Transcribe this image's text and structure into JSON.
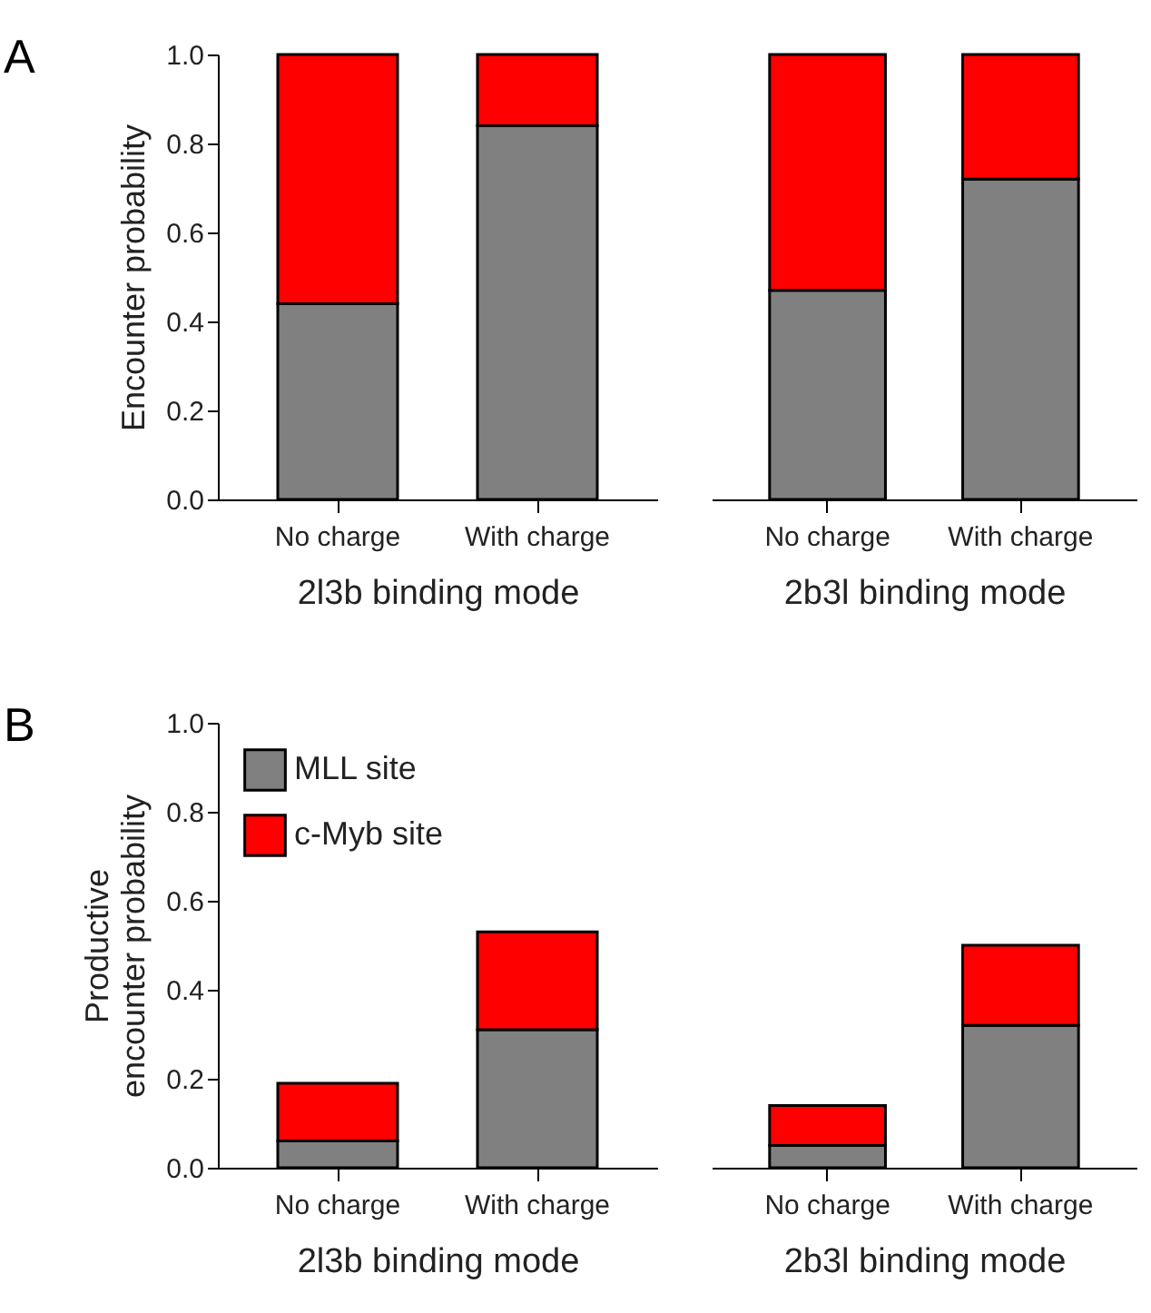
{
  "chart_data": [
    {
      "type": "bar",
      "stacked": true,
      "annotations": [
        "A"
      ],
      "xlabel": "2l3b binding mode",
      "ylabel": "Encounter probability",
      "categories": [
        "No charge",
        "With charge"
      ],
      "ylim": [
        0,
        1
      ],
      "yticks": [
        {
          "value": 0,
          "label": "0.0"
        },
        {
          "value": 0.2,
          "label": "0.2"
        },
        {
          "value": 0.4,
          "label": "0.4"
        },
        {
          "value": 0.6,
          "label": "0.6"
        },
        {
          "value": 0.8,
          "label": "0.8"
        },
        {
          "value": 1,
          "label": "1.0"
        }
      ],
      "series": [
        {
          "color": "#808080",
          "values": [
            0.44,
            0.84
          ]
        },
        {
          "color": "#ff0000",
          "values": [
            0.56,
            0.16
          ]
        }
      ]
    },
    {
      "type": "bar",
      "stacked": true,
      "xlabel": "2b3l binding mode",
      "categories": [
        "No charge",
        "With charge"
      ],
      "ylim": [
        0,
        1
      ],
      "tick_labels": "x",
      "series": [
        {
          "color": "#808080",
          "values": [
            0.47,
            0.72
          ]
        },
        {
          "color": "#ff0000",
          "values": [
            0.53,
            0.28
          ]
        }
      ]
    },
    {
      "type": "bar",
      "stacked": true,
      "annotations": [
        "B"
      ],
      "xlabel": "2l3b binding mode",
      "ylabel": "Productive\nencounter probability",
      "categories": [
        "No charge",
        "With charge"
      ],
      "ylim": [
        0,
        1
      ],
      "yticks": [
        {
          "value": 0,
          "label": "0.0"
        },
        {
          "value": 0.2,
          "label": "0.2"
        },
        {
          "value": 0.4,
          "label": "0.4"
        },
        {
          "value": 0.6,
          "label": "0.6"
        },
        {
          "value": 0.8,
          "label": "0.8"
        },
        {
          "value": 1,
          "label": "1.0"
        }
      ],
      "legend": "top left",
      "series": [
        {
          "name": "MLL site",
          "color": "#808080",
          "values": [
            0.06,
            0.31
          ]
        },
        {
          "name": "c-Myb site",
          "color": "#ff0000",
          "values": [
            0.13,
            0.22
          ]
        }
      ]
    },
    {
      "type": "bar",
      "stacked": true,
      "xlabel": "2b3l binding mode",
      "categories": [
        "No charge",
        "With charge"
      ],
      "ylim": [
        0,
        1
      ],
      "tick_labels": "x",
      "series": [
        {
          "color": "#808080",
          "values": [
            0.05,
            0.32
          ]
        },
        {
          "color": "#ff0000",
          "values": [
            0.09,
            0.18
          ]
        }
      ]
    }
  ]
}
